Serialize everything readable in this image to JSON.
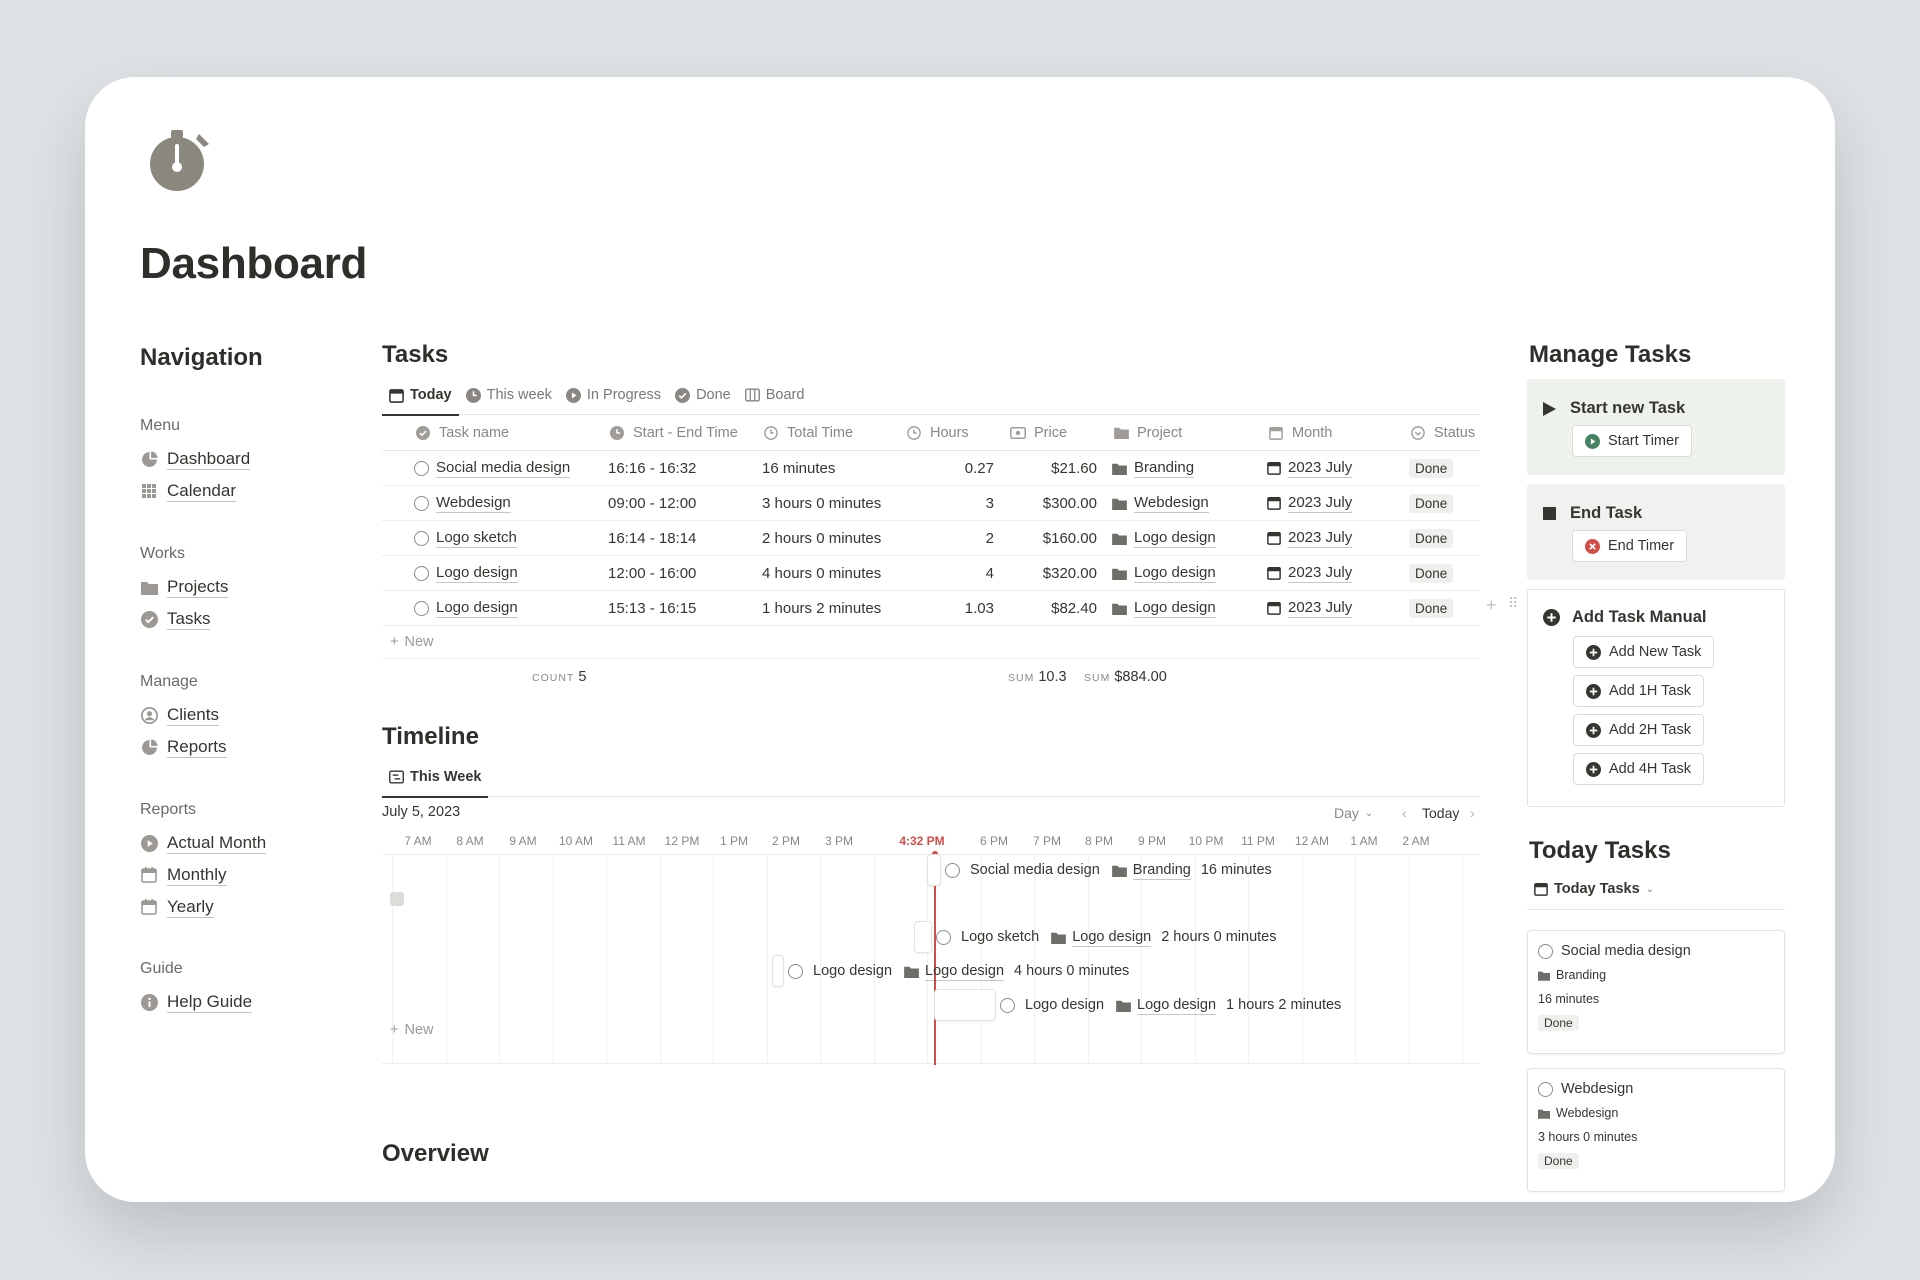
{
  "page": {
    "title": "Dashboard"
  },
  "navigation": {
    "heading": "Navigation",
    "groups": [
      {
        "label": "Menu",
        "items": [
          {
            "label": "Dashboard",
            "icon": "chart-icon"
          },
          {
            "label": "Calendar",
            "icon": "grid-icon"
          }
        ]
      },
      {
        "label": "Works",
        "items": [
          {
            "label": "Projects",
            "icon": "folder-icon"
          },
          {
            "label": "Tasks",
            "icon": "check-circle-icon"
          }
        ]
      },
      {
        "label": "Manage",
        "items": [
          {
            "label": "Clients",
            "icon": "person-circle-icon"
          },
          {
            "label": "Reports",
            "icon": "chart-icon"
          }
        ]
      },
      {
        "label": "Reports",
        "items": [
          {
            "label": "Actual Month",
            "icon": "play-circle-icon"
          },
          {
            "label": "Monthly",
            "icon": "calendar-icon"
          },
          {
            "label": "Yearly",
            "icon": "calendar-icon"
          }
        ]
      },
      {
        "label": "Guide",
        "items": [
          {
            "label": "Help Guide",
            "icon": "info-icon"
          }
        ]
      }
    ]
  },
  "tasks": {
    "heading": "Tasks",
    "tabs": [
      {
        "label": "Today",
        "icon": "calendar-icon",
        "active": true
      },
      {
        "label": "This week",
        "icon": "clock-icon"
      },
      {
        "label": "In Progress",
        "icon": "play-circle-icon"
      },
      {
        "label": "Done",
        "icon": "check-circle-icon"
      },
      {
        "label": "Board",
        "icon": "board-icon"
      }
    ],
    "columns": [
      "Task name",
      "Start - End Time",
      "Total Time",
      "Hours",
      "Price",
      "Project",
      "Month",
      "Status"
    ],
    "rows": [
      {
        "name": "Social media design",
        "time": "16:16 - 16:32",
        "total": "16 minutes",
        "hours": "0.27",
        "price": "$21.60",
        "project": "Branding",
        "month": "2023 July",
        "status": "Done"
      },
      {
        "name": "Webdesign",
        "time": "09:00 - 12:00",
        "total": "3 hours 0 minutes",
        "hours": "3",
        "price": "$300.00",
        "project": "Webdesign",
        "month": "2023 July",
        "status": "Done"
      },
      {
        "name": "Logo sketch",
        "time": "16:14 - 18:14",
        "total": "2 hours 0 minutes",
        "hours": "2",
        "price": "$160.00",
        "project": "Logo design",
        "month": "2023 July",
        "status": "Done"
      },
      {
        "name": "Logo design",
        "time": "12:00 - 16:00",
        "total": "4 hours 0 minutes",
        "hours": "4",
        "price": "$320.00",
        "project": "Logo design",
        "month": "2023 July",
        "status": "Done"
      },
      {
        "name": "Logo design",
        "time": "15:13 - 16:15",
        "total": "1 hours 2 minutes",
        "hours": "1.03",
        "price": "$82.40",
        "project": "Logo design",
        "month": "2023 July",
        "status": "Done"
      }
    ],
    "new_label": "New",
    "count_label": "COUNT",
    "count_value": "5",
    "sum_label": "SUM",
    "sum_hours": "10.3",
    "sum_price": "$884.00"
  },
  "timeline": {
    "heading": "Timeline",
    "tab": "This Week",
    "date": "July 5, 2023",
    "scale": "Day",
    "today": "Today",
    "hours": [
      "7 AM",
      "8 AM",
      "9 AM",
      "10 AM",
      "11 AM",
      "12 PM",
      "1 PM",
      "2 PM",
      "3 PM",
      "4:32 PM",
      "6 PM",
      "7 PM",
      "8 PM",
      "9 PM",
      "10 PM",
      "11 PM",
      "12 AM",
      "1 AM",
      "2 AM"
    ],
    "items": [
      {
        "name": "Social media design",
        "project": "Branding",
        "duration": "16 minutes"
      },
      {
        "name": "Logo sketch",
        "project": "Logo design",
        "duration": "2 hours 0 minutes"
      },
      {
        "name": "Logo design",
        "project": "Logo design",
        "duration": "4 hours 0 minutes"
      },
      {
        "name": "Logo design",
        "project": "Logo design",
        "duration": "1 hours 2 minutes"
      }
    ],
    "new_label": "New"
  },
  "overview": {
    "heading": "Overview"
  },
  "manage": {
    "heading": "Manage Tasks",
    "start": {
      "title": "Start new Task",
      "button": "Start Timer"
    },
    "end": {
      "title": "End Task",
      "button": "End Timer"
    },
    "manual": {
      "title": "Add Task Manual",
      "buttons": [
        "Add New Task",
        "Add 1H Task",
        "Add 2H Task",
        "Add 4H Task"
      ]
    }
  },
  "today_tasks": {
    "heading": "Today Tasks",
    "view": "Today Tasks",
    "cards": [
      {
        "name": "Social media design",
        "project": "Branding",
        "duration": "16 minutes",
        "status": "Done"
      },
      {
        "name": "Webdesign",
        "project": "Webdesign",
        "duration": "3 hours 0 minutes",
        "status": "Done"
      }
    ]
  },
  "colors": {
    "accent_red": "#d44c47",
    "start_bg": "#edf3ec",
    "end_bg": "#f1f1ef",
    "green": "#448361",
    "red": "#d44c47"
  }
}
